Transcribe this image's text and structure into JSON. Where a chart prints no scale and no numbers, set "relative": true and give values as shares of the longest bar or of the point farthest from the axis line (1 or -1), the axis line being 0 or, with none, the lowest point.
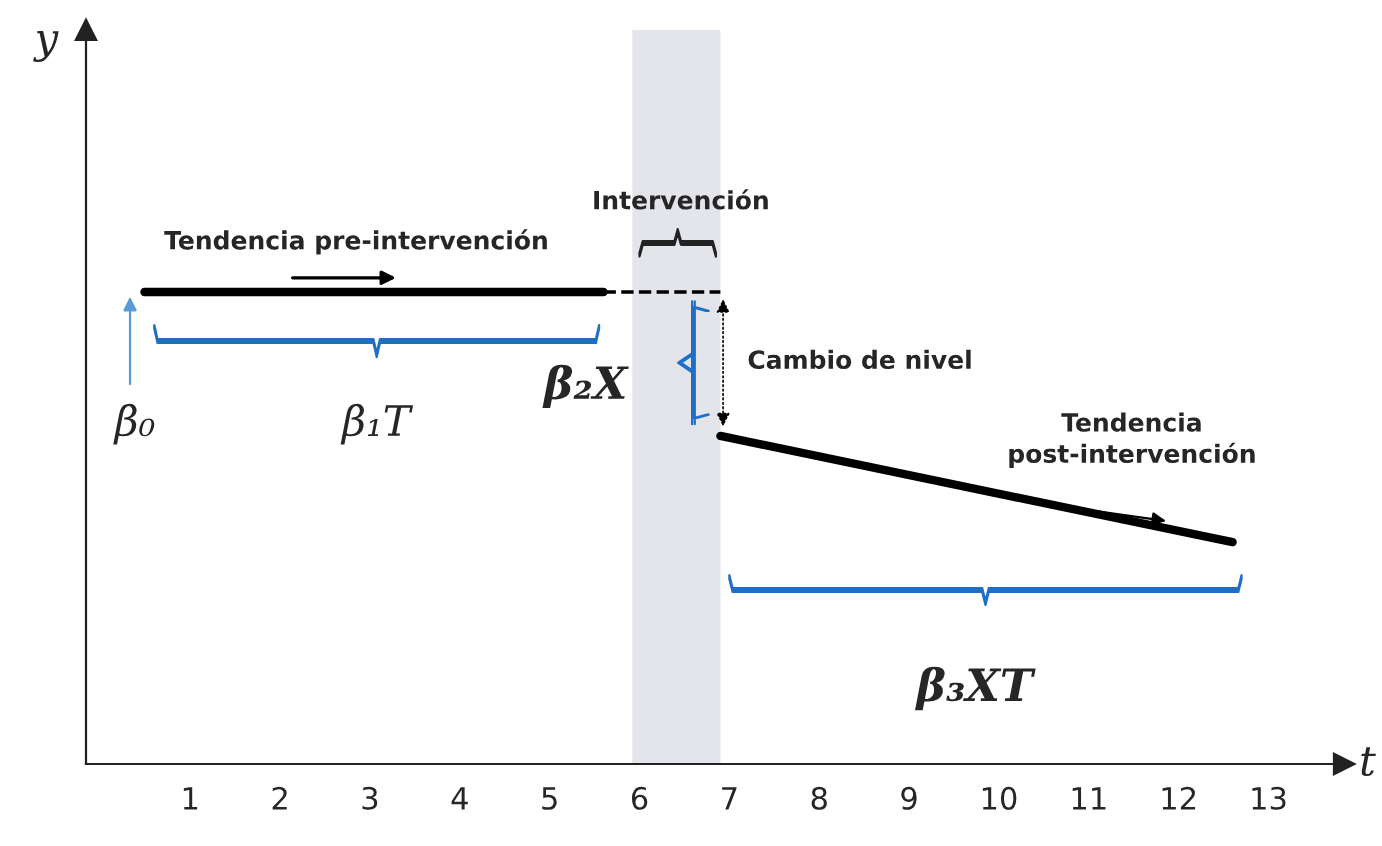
{
  "chart_data": {
    "type": "line",
    "relative": true,
    "xlabel": "t",
    "xlim": [
      -0.16,
      13.84
    ],
    "xticks": [
      1,
      2,
      3,
      4,
      5,
      6,
      7,
      8,
      9,
      10,
      11,
      12,
      13
    ],
    "tick_labels": "x",
    "grid": false,
    "legend": false,
    "marker": "none",
    "bands": [
      {
        "axis": "x",
        "from": 5.92,
        "to": 6.9,
        "label": "Intervención",
        "color": "#e3e5ea"
      }
    ],
    "series": [
      {
        "color": "#000000",
        "x": [
          0.49,
          5.6
        ],
        "values": [
          1,
          1
        ],
        "line_style": "solid"
      },
      {
        "color": "#000000",
        "x": [
          5.6,
          6.9
        ],
        "values": [
          1,
          1
        ],
        "line_style": "dashed"
      },
      {
        "color": "#000000",
        "x": [
          6.9,
          12.6
        ],
        "values": [
          0.695,
          0.47
        ],
        "line_style": "solid"
      }
    ],
    "annotations": [
      "Tendencia pre-intervención",
      "Cambio de nivel",
      "Tendencia\npost-intervención",
      "β₀",
      "β₁T",
      "β₂X",
      "β₃XT",
      "y"
    ]
  }
}
